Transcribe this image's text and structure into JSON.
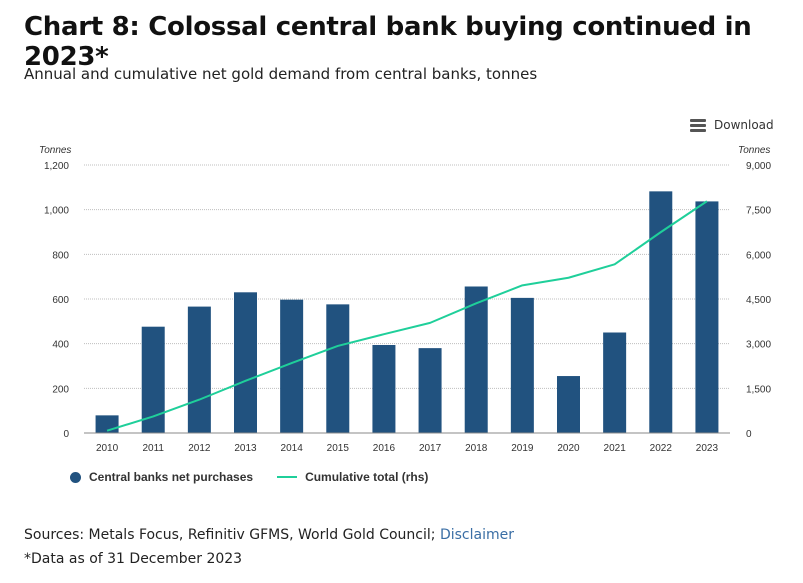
{
  "header": {
    "title": "Chart 8: Colossal central bank buying continued in 2023*",
    "subtitle": "Annual and cumulative net gold demand from central banks, tonnes"
  },
  "toolbar": {
    "download_label": "Download",
    "download_icon": "menu-icon"
  },
  "footer": {
    "sources_text": "Sources: Metals Focus, Refinitiv GFMS, World Gold Council;",
    "disclaimer_link": "Disclaimer",
    "footnote": "*Data as of 31 December 2023"
  },
  "colors": {
    "bar": "#21527f",
    "line": "#1fcf9a",
    "grid": "#bfbfbf"
  },
  "chart_data": {
    "type": "bar",
    "title": "Chart 8: Colossal central bank buying continued in 2023*",
    "subtitle": "Annual and cumulative net gold demand from central banks, tonnes",
    "categories": [
      "2010",
      "2011",
      "2012",
      "2013",
      "2014",
      "2015",
      "2016",
      "2017",
      "2018",
      "2019",
      "2020",
      "2021",
      "2022",
      "2023"
    ],
    "left_axis": {
      "label": "Tonnes",
      "ylim": [
        0,
        1200
      ],
      "ticks": [
        0,
        200,
        400,
        600,
        800,
        1000,
        1200
      ],
      "tick_labels": [
        "0",
        "200",
        "400",
        "600",
        "800",
        "1,000",
        "1,200"
      ]
    },
    "right_axis": {
      "label": "Tonnes",
      "ylim": [
        0,
        9000
      ],
      "ticks": [
        0,
        1500,
        3000,
        4500,
        6000,
        7500,
        9000
      ],
      "tick_labels": [
        "0",
        "1,500",
        "3,000",
        "4,500",
        "6,000",
        "7,500",
        "9,000"
      ]
    },
    "grid": true,
    "legend_position": "bottom-left",
    "series": [
      {
        "name": "Central banks net purchases",
        "type": "bar",
        "axis": "left",
        "values": [
          79,
          476,
          566,
          630,
          597,
          576,
          394,
          380,
          656,
          605,
          255,
          450,
          1082,
          1037
        ]
      },
      {
        "name": "Cumulative total (rhs)",
        "type": "line",
        "axis": "right",
        "values": [
          79,
          555,
          1121,
          1751,
          2348,
          2924,
          3318,
          3698,
          4354,
          4959,
          5214,
          5664,
          6746,
          7783
        ]
      }
    ]
  }
}
